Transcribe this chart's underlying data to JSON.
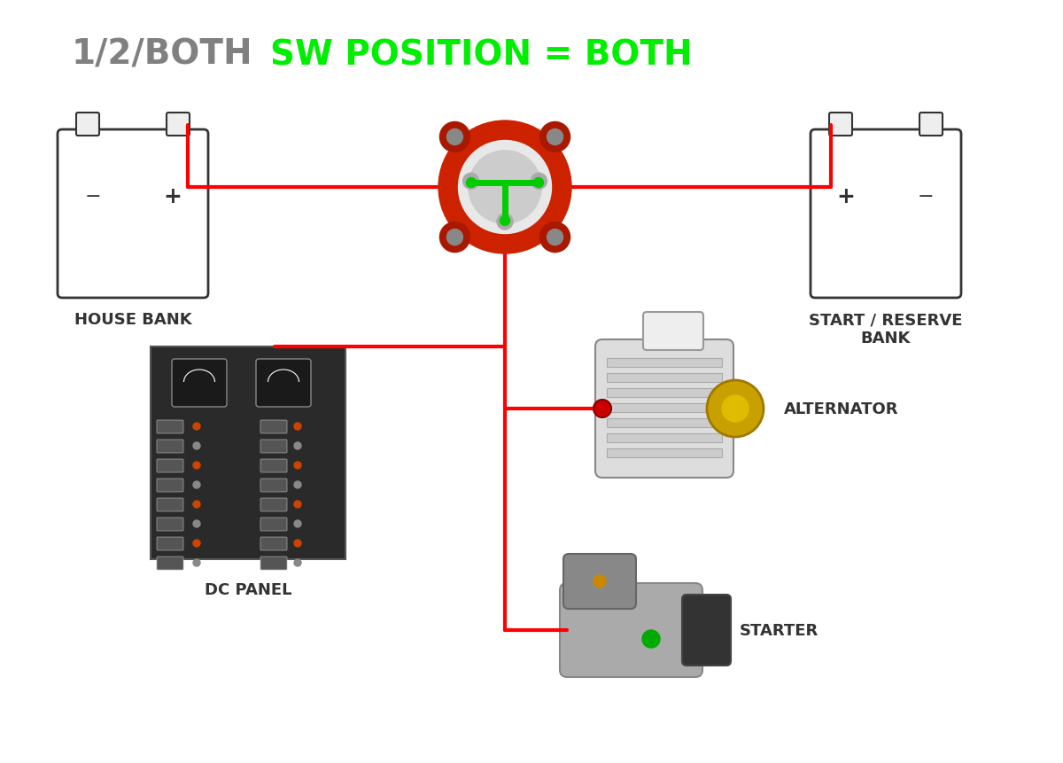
{
  "title_gray": "1/2/BOTH",
  "title_green": "SW POSITION = BOTH",
  "title_fontsize": 28,
  "title_gray_color": "#808080",
  "title_green_color": "#00ee00",
  "bg_color": "#ffffff",
  "wire_color": "#ff0000",
  "wire_green_color": "#00cc00",
  "wire_lw": 3,
  "house_bank_label": "HOUSE BANK",
  "start_bank_label": "START / RESERVE\nBANK",
  "dc_panel_label": "DC PANEL",
  "alternator_label": "ALTERNATOR",
  "starter_label": "STARTER",
  "label_fontsize": 13,
  "label_fontweight": "bold"
}
